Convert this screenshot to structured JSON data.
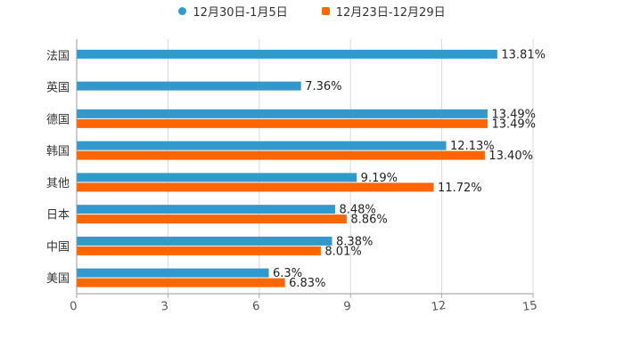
{
  "chart_data": {
    "type": "bar",
    "orientation": "horizontal",
    "categories": [
      "法国",
      "英国",
      "德国",
      "韩国",
      "其他",
      "日本",
      "中国",
      "美国"
    ],
    "series": [
      {
        "name": "12月30日-1月5日",
        "color": "#3399cc",
        "values": [
          13.81,
          7.36,
          13.49,
          12.13,
          9.19,
          8.48,
          8.38,
          6.3
        ],
        "labels": [
          "13.81%",
          "7.36%",
          "13.49%",
          "12.13%",
          "9.19%",
          "8.48%",
          "8.38%",
          "6.3%"
        ]
      },
      {
        "name": "12月23日-12月29日",
        "color": "#ff6600",
        "values": [
          null,
          null,
          13.49,
          13.4,
          11.72,
          8.86,
          8.01,
          6.83
        ],
        "labels": [
          null,
          null,
          "13.49%",
          "13.40%",
          "11.72%",
          "8.86%",
          "8.01%",
          "6.83%"
        ]
      }
    ],
    "xlim": [
      0,
      15
    ],
    "xticks": [
      "0",
      "3",
      "6",
      "9",
      "12",
      "15"
    ],
    "grid": true,
    "legend": "top-center"
  }
}
